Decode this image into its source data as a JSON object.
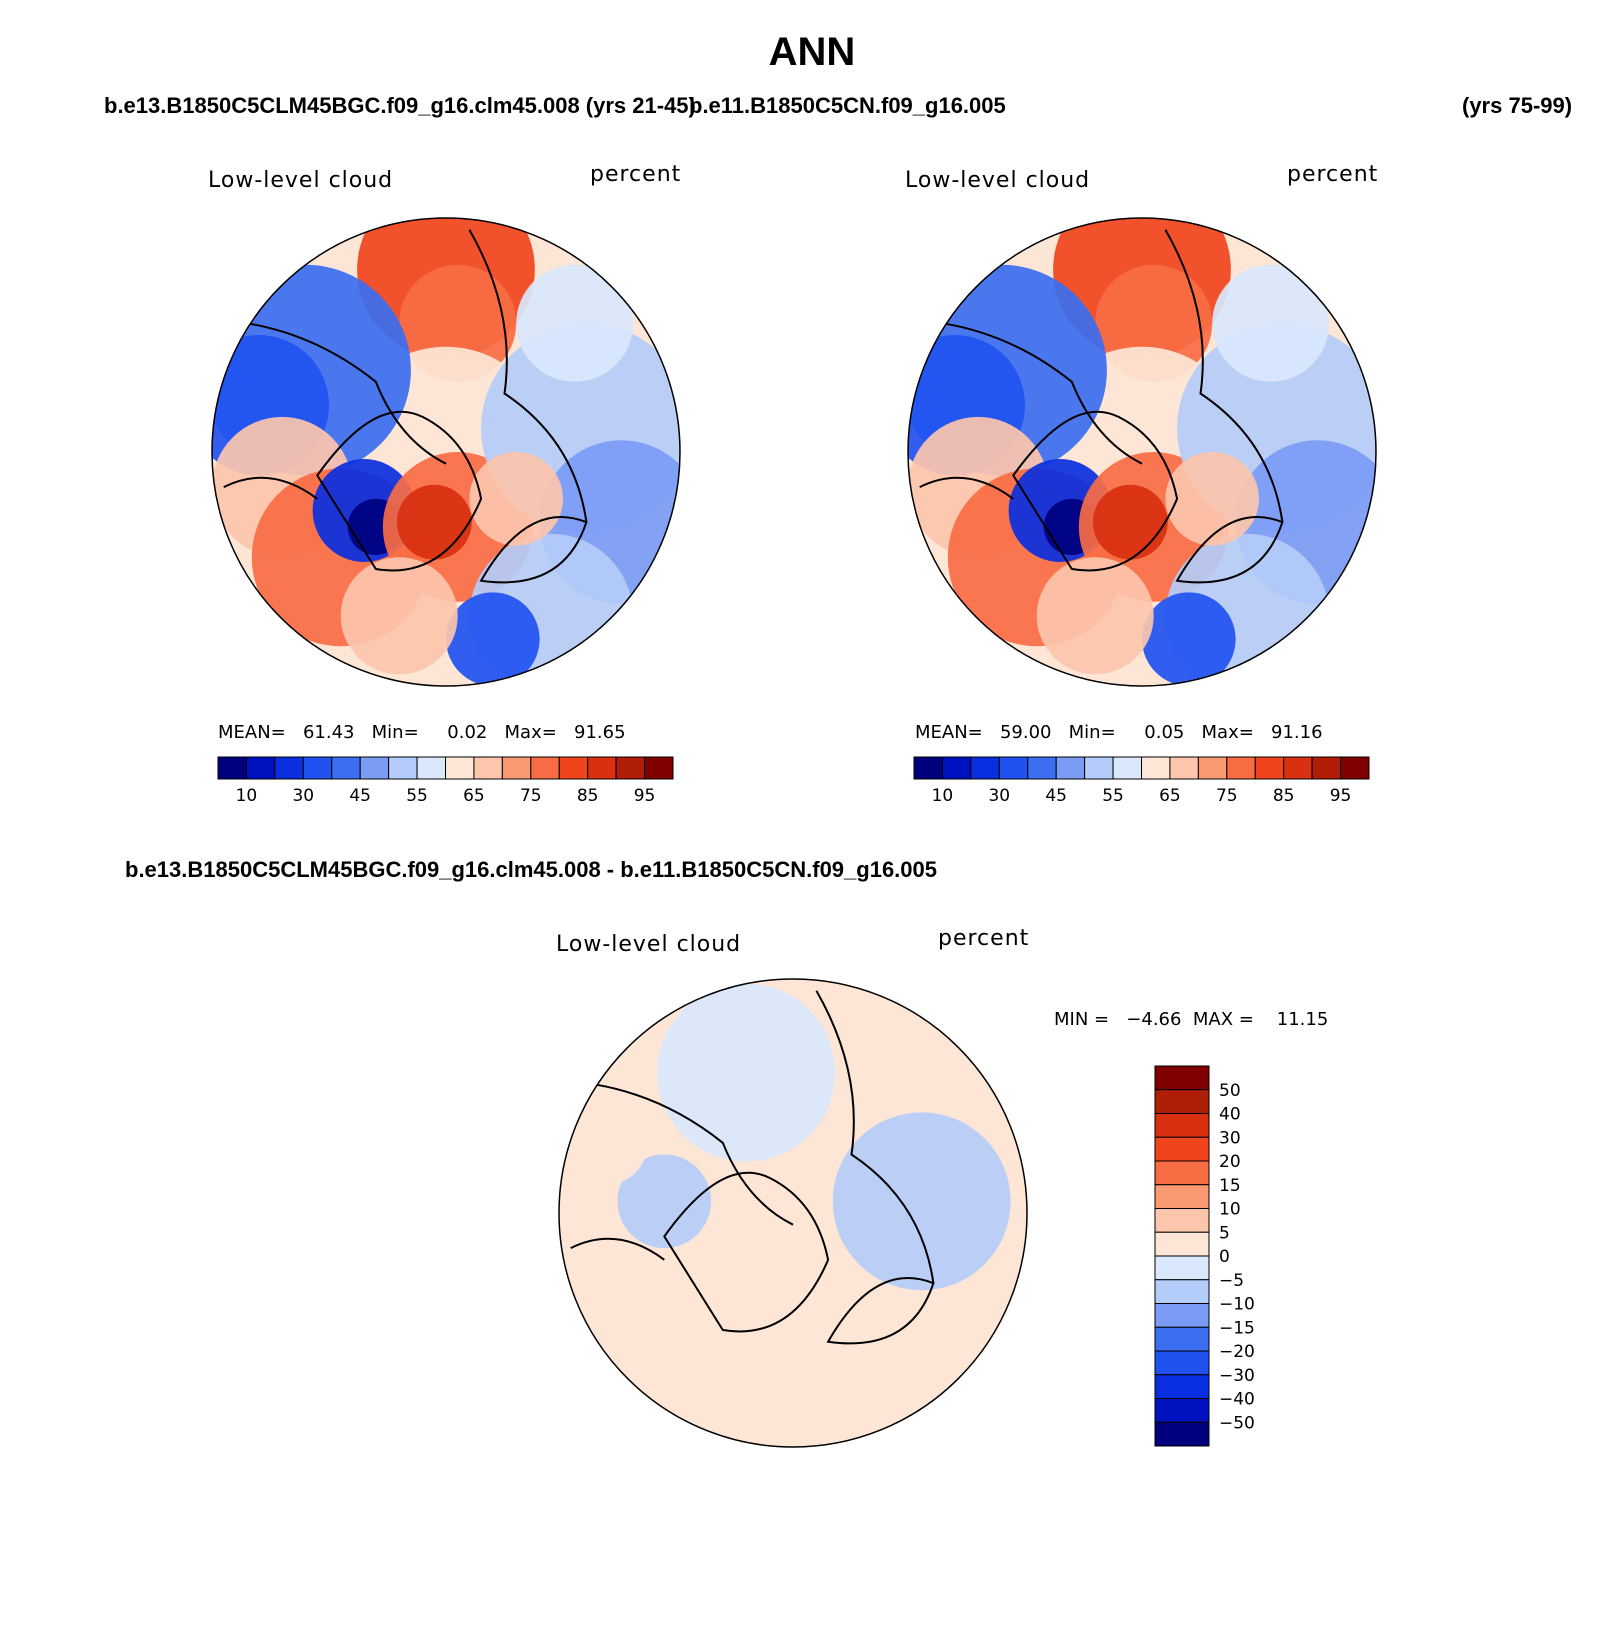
{
  "page": {
    "title": "ANN",
    "case1_label": "b.e13.B1850C5CLM45BGC.f09_g16.clm45.008 (yrs 21-45)",
    "case2_label": "b.e11.B1850C5CN.f09_g16.005",
    "case2_years": "(yrs 75-99)",
    "diff_label": "b.e13.B1850C5CLM45BGC.f09_g16.clm45.008 - b.e11.B1850C5CN.f09_g16.005"
  },
  "chart_data": [
    {
      "type": "heatmap",
      "projection": "north-polar-stereographic",
      "variable": "Low-level cloud",
      "units": "percent",
      "stats": {
        "mean_label": "MEAN=",
        "mean": "61.43",
        "min_label": "Min=",
        "min": "0.02",
        "max_label": "Max=",
        "max": "91.65"
      },
      "colorbar": {
        "levels": [
          10,
          20,
          30,
          40,
          45,
          50,
          55,
          60,
          65,
          70,
          75,
          80,
          85,
          90,
          95
        ],
        "tick_labels": [
          "10",
          "30",
          "45",
          "55",
          "65",
          "75",
          "85",
          "95"
        ],
        "colors": [
          "#00007f",
          "#0012c0",
          "#0a2fe0",
          "#1f52f0",
          "#3b6ef0",
          "#7a9cf5",
          "#b4ccf9",
          "#d9e8fc",
          "#fde6d6",
          "#fcc6ac",
          "#fa9a72",
          "#f86c44",
          "#f0451c",
          "#d83010",
          "#b01e08",
          "#800000"
        ]
      }
    },
    {
      "type": "heatmap",
      "projection": "north-polar-stereographic",
      "variable": "Low-level cloud",
      "units": "percent",
      "stats": {
        "mean_label": "MEAN=",
        "mean": "59.00",
        "min_label": "Min=",
        "min": "0.05",
        "max_label": "Max=",
        "max": "91.16"
      },
      "colorbar": {
        "levels": [
          10,
          20,
          30,
          40,
          45,
          50,
          55,
          60,
          65,
          70,
          75,
          80,
          85,
          90,
          95
        ],
        "tick_labels": [
          "10",
          "30",
          "45",
          "55",
          "65",
          "75",
          "85",
          "95"
        ],
        "colors": [
          "#00007f",
          "#0012c0",
          "#0a2fe0",
          "#1f52f0",
          "#3b6ef0",
          "#7a9cf5",
          "#b4ccf9",
          "#d9e8fc",
          "#fde6d6",
          "#fcc6ac",
          "#fa9a72",
          "#f86c44",
          "#f0451c",
          "#d83010",
          "#b01e08",
          "#800000"
        ]
      }
    },
    {
      "type": "heatmap",
      "projection": "north-polar-stereographic",
      "variable": "Low-level cloud",
      "units": "percent",
      "stats": {
        "min_label": "MIN =",
        "min": "−4.66",
        "max_label": "MAX =",
        "max": "11.15"
      },
      "colorbar": {
        "orientation": "vertical",
        "tick_labels": [
          "50",
          "40",
          "30",
          "20",
          "15",
          "10",
          "5",
          "0",
          "−5",
          "−10",
          "−15",
          "−20",
          "−30",
          "−40",
          "−50"
        ],
        "colors": [
          "#800000",
          "#b01e08",
          "#d83010",
          "#f0451c",
          "#f86c44",
          "#fa9a72",
          "#fcc6ac",
          "#fde6d6",
          "#d9e8fc",
          "#b4ccf9",
          "#7a9cf5",
          "#3b6ef0",
          "#1f52f0",
          "#0a2fe0",
          "#0012c0",
          "#00007f"
        ]
      }
    }
  ]
}
